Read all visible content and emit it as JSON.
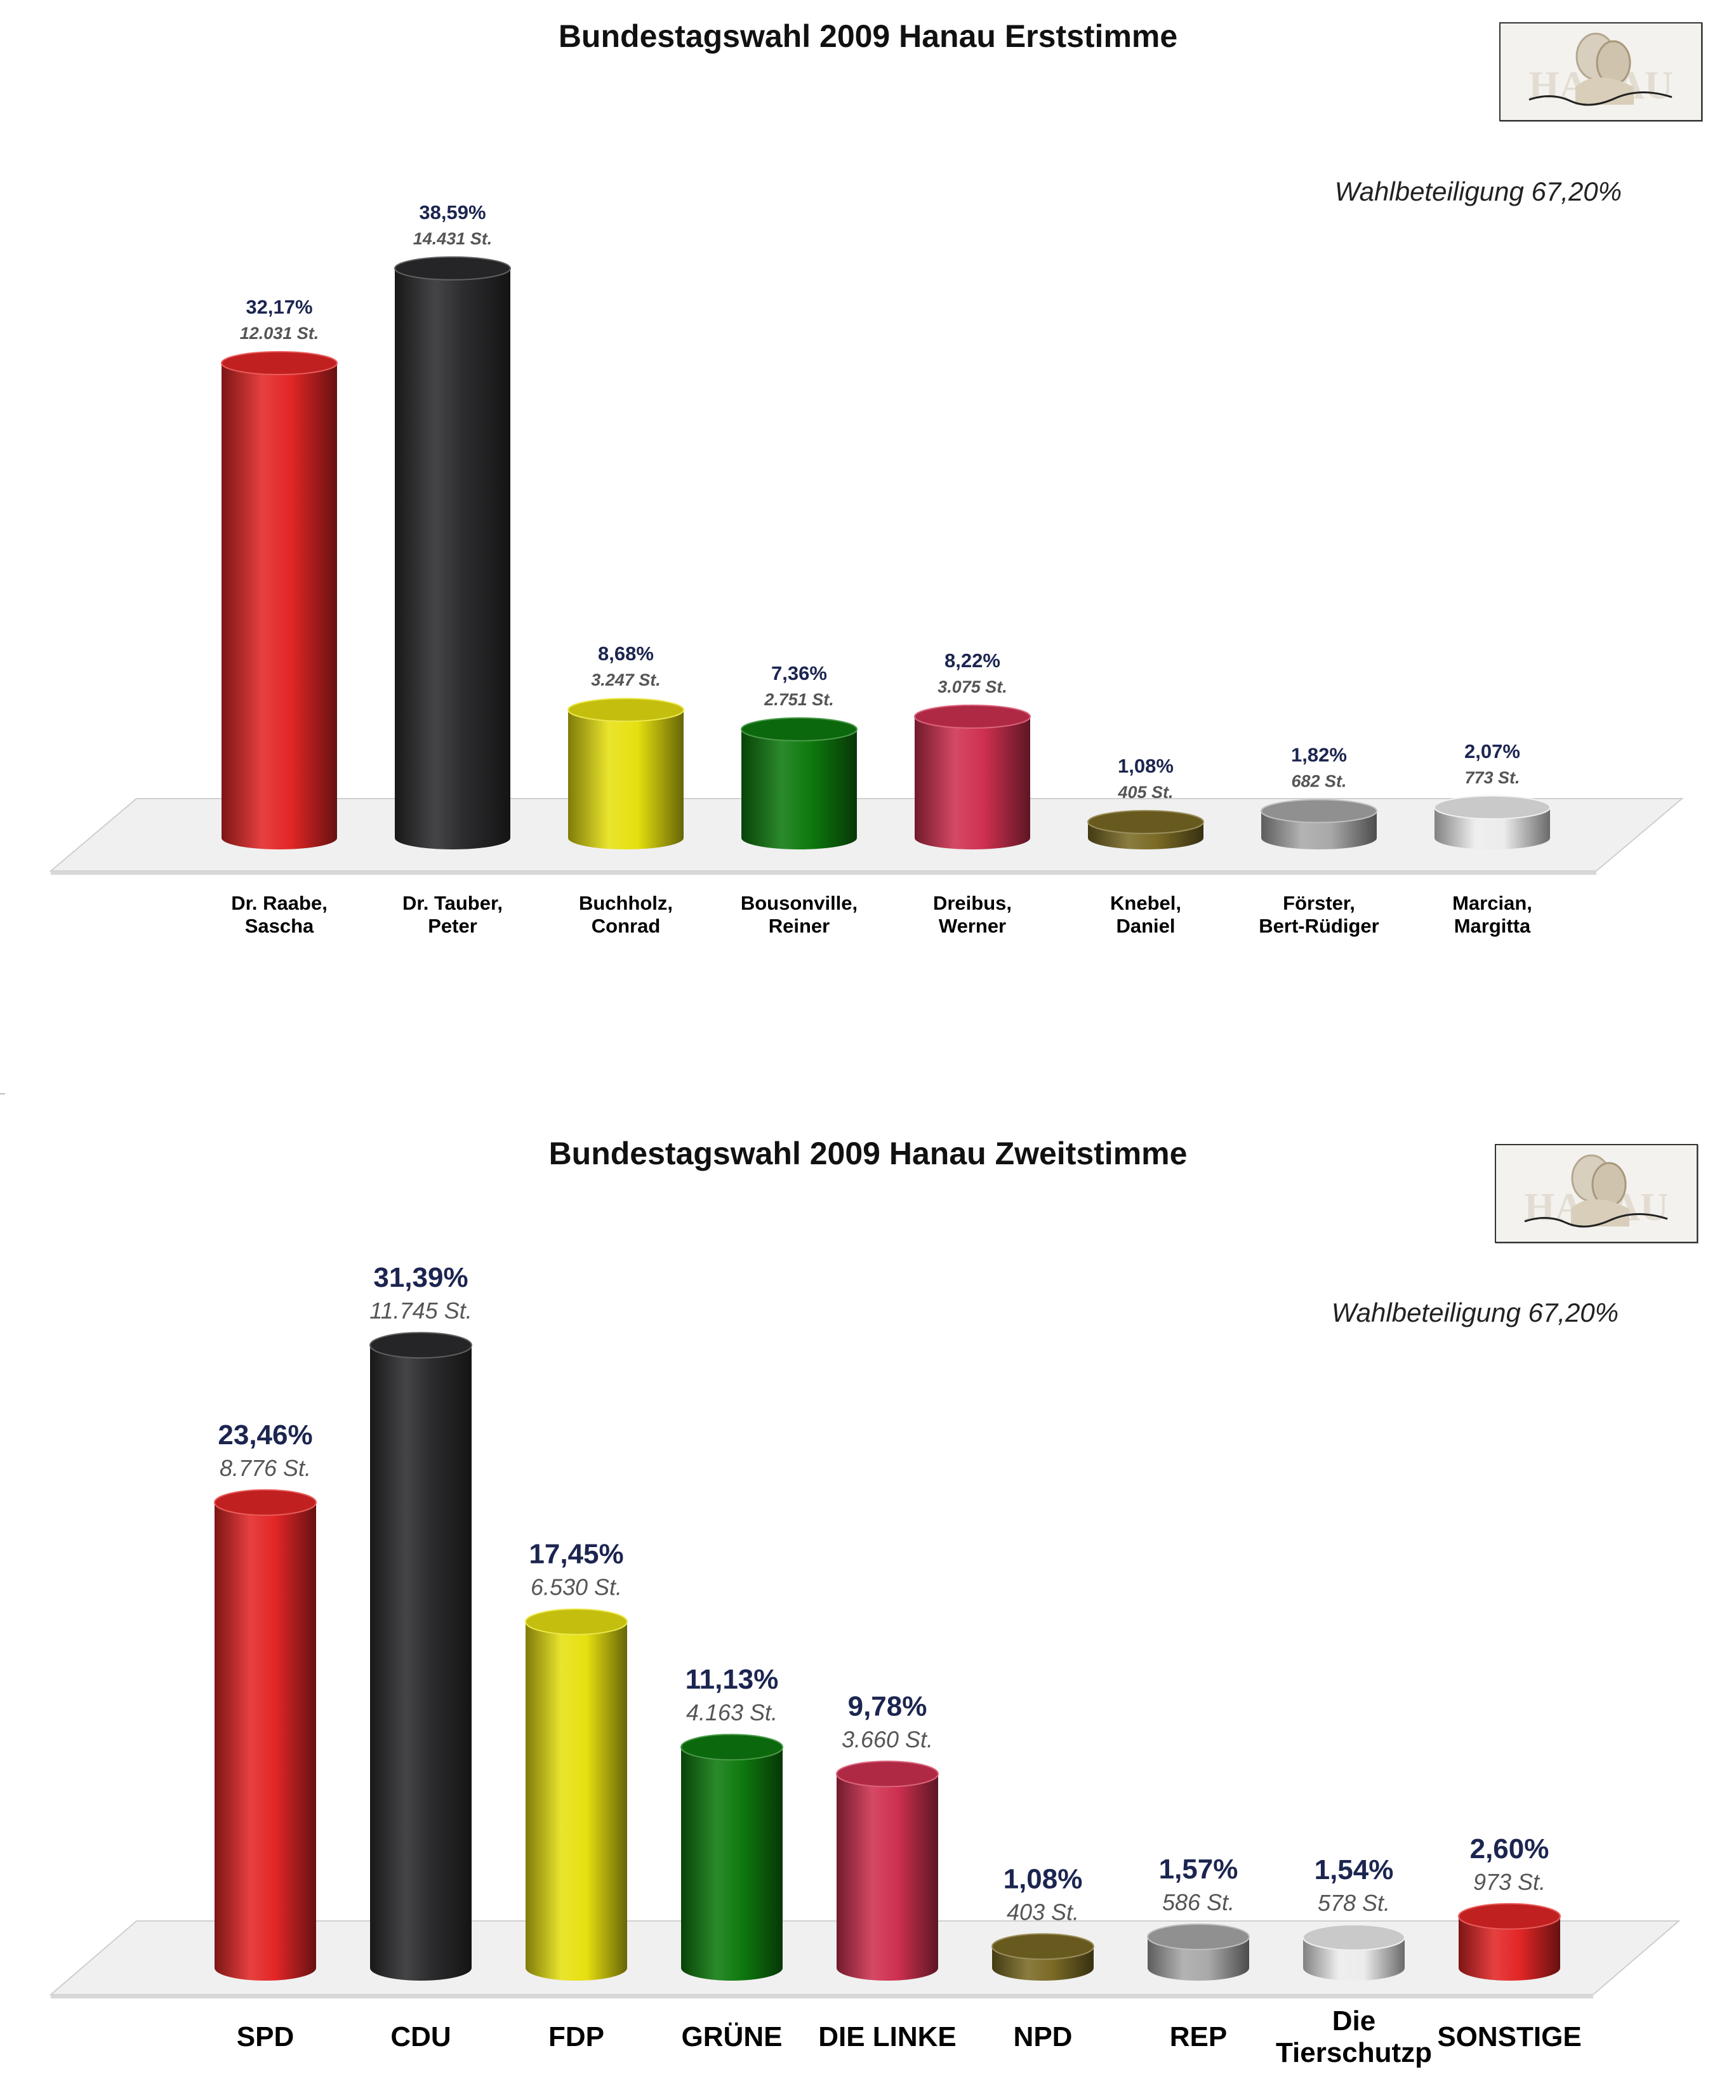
{
  "charts": [
    {
      "title": "Bundestagswahl 2009 Hanau Erststimme",
      "turnout": "Wahlbeteiligung 67,20%",
      "logo_text": "HANAU",
      "logo_signature": "Brüder-Grimm-Stadt"
    },
    {
      "title": "Bundestagswahl 2009 Hanau Zweitstimme",
      "turnout": "Wahlbeteiligung 67,20%",
      "logo_text": "HANAU",
      "logo_signature": "Brüder-Grimm-Stadt"
    }
  ],
  "chart_data": [
    {
      "type": "bar",
      "title": "Bundestagswahl 2009 Hanau Erststimme",
      "annotation": "Wahlbeteiligung 67,20%",
      "categories": [
        [
          "Dr. Raabe,",
          "Sascha"
        ],
        [
          "Dr. Tauber,",
          "Peter"
        ],
        [
          "Buchholz,",
          "Conrad"
        ],
        [
          "Bousonville,",
          "Reiner"
        ],
        [
          "Dreibus,",
          "Werner"
        ],
        [
          "Knebel,",
          "Daniel"
        ],
        [
          "Förster,",
          "Bert-Rüdiger"
        ],
        [
          "Marcian,",
          "Margitta"
        ]
      ],
      "values": [
        32.17,
        38.59,
        8.68,
        7.36,
        8.22,
        1.08,
        1.82,
        2.07
      ],
      "value_labels": [
        "32,17%",
        "38,59%",
        "8,68%",
        "7,36%",
        "8,22%",
        "1,08%",
        "1,82%",
        "2,07%"
      ],
      "vote_labels": [
        "12.031 St.",
        "14.431 St.",
        "3.247 St.",
        "2.751 St.",
        "3.075 St.",
        "405 St.",
        "682 St.",
        "773 St."
      ],
      "colors": [
        "#e32626",
        "#2c2c2e",
        "#e6e010",
        "#0e7a0e",
        "#cf3050",
        "#7a6a25",
        "#a9a9a9",
        "#ececec"
      ],
      "ylim": [
        0,
        40
      ],
      "grid": false
    },
    {
      "type": "bar",
      "title": "Bundestagswahl 2009 Hanau Zweitstimme",
      "annotation": "Wahlbeteiligung 67,20%",
      "categories": [
        [
          "SPD"
        ],
        [
          "CDU"
        ],
        [
          "FDP"
        ],
        [
          "GRÜNE"
        ],
        [
          "DIE LINKE"
        ],
        [
          "NPD"
        ],
        [
          "REP"
        ],
        [
          "Die",
          "Tierschutzp"
        ],
        [
          "SONSTIGE"
        ]
      ],
      "values": [
        23.46,
        31.39,
        17.45,
        11.13,
        9.78,
        1.08,
        1.57,
        1.54,
        2.6
      ],
      "value_labels": [
        "23,46%",
        "31,39%",
        "17,45%",
        "11,13%",
        "9,78%",
        "1,08%",
        "1,57%",
        "1,54%",
        "2,60%"
      ],
      "vote_labels": [
        "8.776 St.",
        "11.745 St.",
        "6.530 St.",
        "4.163 St.",
        "3.660 St.",
        "403 St.",
        "586 St.",
        "578 St.",
        "973 St."
      ],
      "colors": [
        "#e32626",
        "#2c2c2e",
        "#e6e010",
        "#0e7a0e",
        "#cf3050",
        "#7a6a25",
        "#a9a9a9",
        "#ececec",
        "#e32626"
      ],
      "ylim": [
        0,
        32
      ],
      "grid": false
    }
  ]
}
